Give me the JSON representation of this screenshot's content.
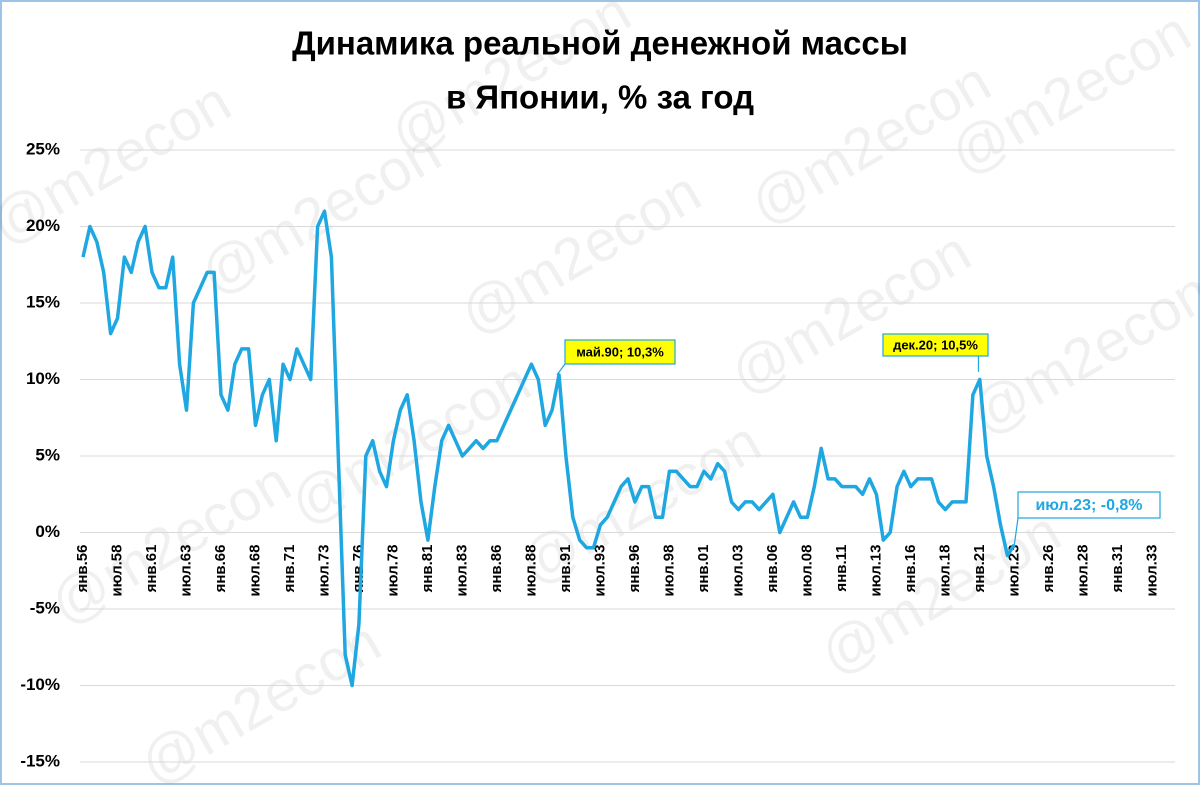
{
  "chart_data": {
    "type": "line",
    "title": [
      "Динамика реальной денежной массы",
      "в Японии, % за год"
    ],
    "watermark": "@m2econ",
    "categories": [
      "янв.56",
      null,
      null,
      null,
      null,
      "июл.58",
      null,
      null,
      null,
      null,
      "янв.61",
      null,
      null,
      null,
      null,
      "июл.63",
      null,
      null,
      null,
      null,
      "янв.66",
      null,
      null,
      null,
      null,
      "июл.68",
      null,
      null,
      null,
      null,
      "янв.71",
      null,
      null,
      null,
      null,
      "июл.73",
      null,
      null,
      null,
      null,
      "янв.76",
      null,
      null,
      null,
      null,
      "июл.78",
      null,
      null,
      null,
      null,
      "янв.81",
      null,
      null,
      null,
      null,
      "июл.83",
      null,
      null,
      null,
      null,
      "янв.86",
      null,
      null,
      null,
      null,
      "июл.88",
      null,
      null,
      null,
      null,
      "янв.91",
      null,
      null,
      null,
      null,
      "июл.93",
      null,
      null,
      null,
      null,
      "янв.96",
      null,
      null,
      null,
      null,
      "июл.98",
      null,
      null,
      null,
      null,
      "янв.01",
      null,
      null,
      null,
      null,
      "июл.03",
      null,
      null,
      null,
      null,
      "янв.06",
      null,
      null,
      null,
      null,
      "июл.08",
      null,
      null,
      null,
      null,
      "янв.11",
      null,
      null,
      null,
      null,
      "июл.13",
      null,
      null,
      null,
      null,
      "янв.16",
      null,
      null,
      null,
      null,
      "июл.18",
      null,
      null,
      null,
      null,
      "янв.21",
      null,
      null,
      null,
      null,
      "июл.23",
      null,
      null,
      null,
      null,
      "янв.26",
      null,
      null,
      null,
      null,
      "июл.28",
      null,
      null,
      null,
      null,
      "янв.31",
      null,
      null,
      null,
      null,
      "июл.33",
      null,
      null,
      null
    ],
    "series": [
      {
        "color": "#1ea7e1",
        "values": [
          18,
          20,
          19,
          17,
          13,
          14,
          18,
          17,
          19,
          20,
          17,
          16,
          16,
          18,
          11,
          8,
          15,
          16,
          17,
          17,
          9,
          8,
          11,
          12,
          12,
          7,
          9,
          10,
          6,
          11,
          10,
          12,
          11,
          10,
          20,
          21,
          18,
          5,
          -8,
          -10,
          -6,
          5,
          6,
          4,
          3,
          6,
          8,
          9,
          6,
          2,
          -0.5,
          3,
          6,
          7,
          6,
          5,
          5.5,
          6,
          5.5,
          6,
          6,
          7,
          8,
          9,
          10,
          11,
          10,
          7,
          8,
          10.3,
          5,
          1,
          -0.5,
          -1,
          -1,
          0.5,
          1,
          2,
          3,
          3.5,
          2,
          3,
          3,
          1,
          1,
          4,
          4,
          3.5,
          3,
          3,
          4,
          3.5,
          4.5,
          4,
          2,
          1.5,
          2,
          2,
          1.5,
          2,
          2.5,
          0,
          1,
          2,
          1,
          1,
          3,
          5.5,
          3.5,
          3.5,
          3,
          3,
          3,
          2.5,
          3.5,
          2.5,
          -0.5,
          0,
          3,
          4,
          3,
          3.5,
          3.5,
          3.5,
          2,
          1.5,
          2,
          2,
          2,
          9,
          10,
          5,
          3,
          0.5,
          -1.5,
          -0.8,
          null,
          null,
          null,
          null,
          null,
          null,
          null,
          null,
          null,
          null,
          null,
          null,
          null,
          null,
          null,
          null,
          null,
          null,
          null,
          null,
          null,
          null,
          null
        ]
      }
    ],
    "ylim": [
      -15,
      25
    ],
    "yticks": [
      {
        "value": -15,
        "label": "-15%"
      },
      {
        "value": -10,
        "label": "-10%"
      },
      {
        "value": -5,
        "label": "-5%"
      },
      {
        "value": 0,
        "label": "0%"
      },
      {
        "value": 5,
        "label": "5%"
      },
      {
        "value": 10,
        "label": "10%"
      },
      {
        "value": 15,
        "label": "15%"
      },
      {
        "value": 20,
        "label": "20%"
      },
      {
        "value": 25,
        "label": "25%"
      }
    ],
    "grid": true,
    "annotations": [
      {
        "text": "май.90; 10,3%",
        "value": 10.3
      },
      {
        "text": "дек.20; 10,5%",
        "value": 10.5
      },
      {
        "text": "июл.23; -0,8%",
        "value": -0.8
      }
    ]
  }
}
